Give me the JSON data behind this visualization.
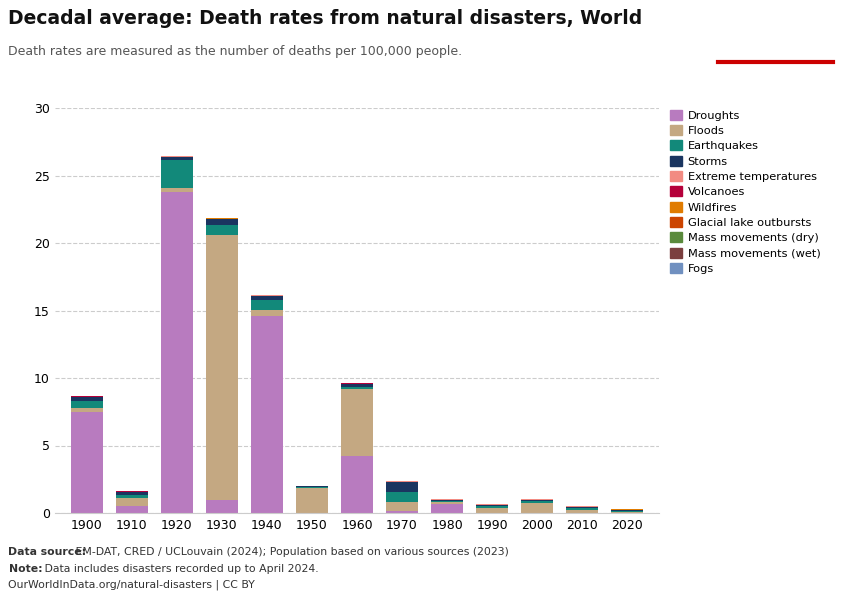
{
  "title": "Decadal average: Death rates from natural disasters, World",
  "subtitle": "Death rates are measured as the number of deaths per 100,000 people.",
  "ylim": [
    0,
    30
  ],
  "yticks": [
    0,
    5,
    10,
    15,
    20,
    25,
    30
  ],
  "decades": [
    1900,
    1910,
    1920,
    1930,
    1940,
    1950,
    1960,
    1970,
    1980,
    1990,
    2000,
    2010,
    2020
  ],
  "series": {
    "Droughts": [
      7.5,
      0.5,
      23.8,
      1.0,
      14.6,
      0.02,
      4.2,
      0.15,
      0.65,
      0.02,
      0.02,
      0.02,
      0.02
    ],
    "Floods": [
      0.25,
      0.6,
      0.25,
      19.6,
      0.45,
      1.85,
      5.0,
      0.65,
      0.15,
      0.35,
      0.75,
      0.2,
      0.08
    ],
    "Earthquakes": [
      0.55,
      0.25,
      2.1,
      0.7,
      0.7,
      0.05,
      0.15,
      0.75,
      0.1,
      0.12,
      0.1,
      0.18,
      0.08
    ],
    "Storms": [
      0.3,
      0.2,
      0.25,
      0.45,
      0.35,
      0.05,
      0.18,
      0.75,
      0.08,
      0.1,
      0.1,
      0.05,
      0.04
    ],
    "Extreme temperatures": [
      0.02,
      0.02,
      0.02,
      0.02,
      0.02,
      0.01,
      0.04,
      0.04,
      0.04,
      0.04,
      0.05,
      0.05,
      0.02
    ],
    "Volcanoes": [
      0.05,
      0.04,
      0.04,
      0.04,
      0.04,
      0.01,
      0.04,
      0.04,
      0.02,
      0.02,
      0.02,
      0.02,
      0.01
    ],
    "Wildfires": [
      0.01,
      0.01,
      0.01,
      0.01,
      0.01,
      0.01,
      0.01,
      0.01,
      0.01,
      0.01,
      0.01,
      0.01,
      0.01
    ],
    "Glacial lake outbursts": [
      0.0,
      0.0,
      0.0,
      0.0,
      0.0,
      0.0,
      0.0,
      0.0,
      0.0,
      0.0,
      0.0,
      0.0,
      0.0
    ],
    "Mass movements (dry)": [
      0.0,
      0.0,
      0.0,
      0.0,
      0.0,
      0.0,
      0.0,
      0.0,
      0.0,
      0.0,
      0.0,
      0.01,
      0.0
    ],
    "Mass movements (wet)": [
      0.0,
      0.0,
      0.0,
      0.0,
      0.0,
      0.0,
      0.0,
      0.0,
      0.0,
      0.0,
      0.01,
      0.01,
      0.0
    ],
    "Fogs": [
      0.0,
      0.0,
      0.0,
      0.0,
      0.0,
      0.0,
      0.0,
      0.0,
      0.0,
      0.0,
      0.0,
      0.0,
      0.0
    ]
  },
  "colors": {
    "Droughts": "#b87bbf",
    "Floods": "#c4a882",
    "Earthquakes": "#12897a",
    "Storms": "#1a3560",
    "Extreme temperatures": "#f28b82",
    "Volcanoes": "#b5003a",
    "Wildfires": "#e07b00",
    "Glacial lake outbursts": "#cc4400",
    "Mass movements (dry)": "#5a8a3c",
    "Mass movements (wet)": "#7b3f3f",
    "Fogs": "#7090c0"
  },
  "datasource_bold": "Data source:",
  "datasource_rest": " EM-DAT, CRED / UCLouvain (2024); Population based on various sources (2023)",
  "note_bold": "Note:",
  "note_rest": " Data includes disasters recorded up to April 2024.",
  "url": "OurWorldInData.org/natural-disasters | CC BY",
  "background_color": "#ffffff",
  "bar_width": 7.0
}
